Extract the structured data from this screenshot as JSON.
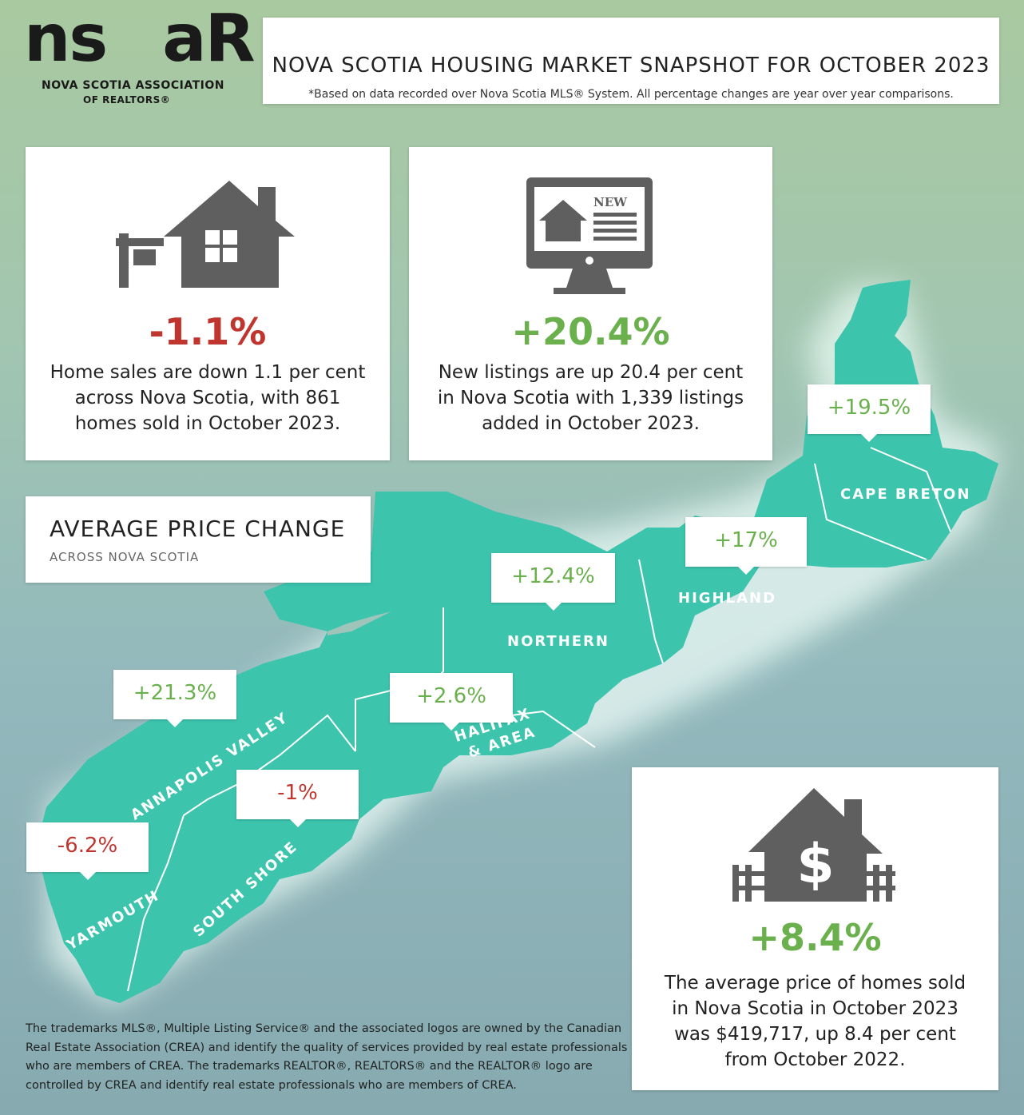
{
  "logo": {
    "letters": "ns ar",
    "line1": "NOVA SCOTIA ASSOCIATION",
    "line2": "OF REALTORS®"
  },
  "header": {
    "title": "NOVA SCOTIA HOUSING MARKET SNAPSHOT FOR OCTOBER 2023",
    "subtitle": "*Based on data recorded over Nova Scotia MLS® System. All percentage changes are year over year comparisons."
  },
  "sales": {
    "icon": "house-for-sale-icon",
    "change": "-1.1%",
    "line1": "Home sales are down 1.1 per cent",
    "line2": "across Nova Scotia, with 861",
    "line3": "homes sold in October 2023."
  },
  "listings": {
    "icon": "monitor-new-listing-icon",
    "change": "+20.4%",
    "line1": "New listings are up 20.4 per cent",
    "line2": "in Nova Scotia with 1,339 listings",
    "line3": "added in October 2023."
  },
  "avg_price_heading": {
    "title": "AVERAGE PRICE CHANGE",
    "subtitle": "ACROSS NOVA SCOTIA"
  },
  "regions": {
    "cape_breton": {
      "name": "CAPE BRETON",
      "change": "+19.5%"
    },
    "highland": {
      "name": "HIGHLAND",
      "change": "+17%"
    },
    "northern": {
      "name": "NORTHERN",
      "change": "+12.4%"
    },
    "halifax": {
      "name1": "HALIFAX",
      "name2": "& AREA",
      "change": "+2.6%"
    },
    "annapolis": {
      "name": "ANNAPOLIS VALLEY",
      "change": "+21.3%"
    },
    "south_shore": {
      "name": "SOUTH SHORE",
      "change": "-1%"
    },
    "yarmouth": {
      "name": "YARMOUTH",
      "change": "-6.2%"
    }
  },
  "avg_price": {
    "icon": "house-dollar-icon",
    "change": "+8.4%",
    "line1": "The average price of homes sold",
    "line2": "in Nova Scotia in October 2023",
    "line3": "was $419,717, up 8.4 per cent",
    "line4": "from October 2022."
  },
  "footnote": "The trademarks MLS®, Multiple Listing Service® and the associated logos are owned by the Canadian Real Estate Association (CREA) and identify the quality of services provided by real estate professionals who are members of CREA. The trademarks REALTOR®, REALTORS® and the REALTOR® logo are controlled by CREA and identify real estate professionals who are members of CREA.",
  "colors": {
    "map": "#3cc4ad",
    "negative": "#c0352e",
    "positive": "#6ab04c",
    "icon": "#5f5f5f"
  }
}
